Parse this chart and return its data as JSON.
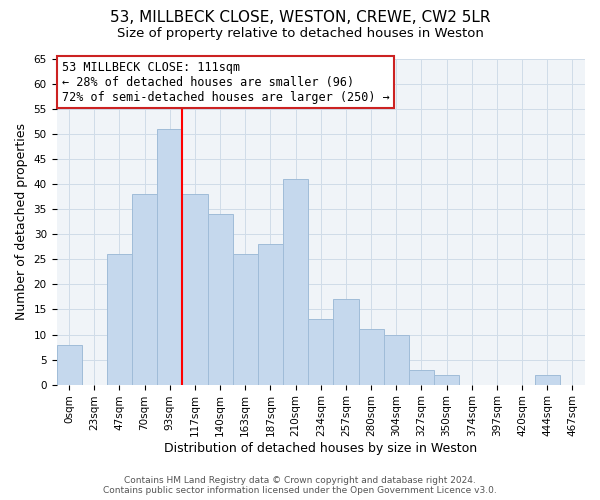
{
  "title": "53, MILLBECK CLOSE, WESTON, CREWE, CW2 5LR",
  "subtitle": "Size of property relative to detached houses in Weston",
  "xlabel": "Distribution of detached houses by size in Weston",
  "ylabel": "Number of detached properties",
  "bar_labels": [
    "0sqm",
    "23sqm",
    "47sqm",
    "70sqm",
    "93sqm",
    "117sqm",
    "140sqm",
    "163sqm",
    "187sqm",
    "210sqm",
    "234sqm",
    "257sqm",
    "280sqm",
    "304sqm",
    "327sqm",
    "350sqm",
    "374sqm",
    "397sqm",
    "420sqm",
    "444sqm",
    "467sqm"
  ],
  "bar_heights": [
    8,
    0,
    26,
    38,
    51,
    38,
    34,
    26,
    28,
    41,
    13,
    17,
    11,
    10,
    3,
    2,
    0,
    0,
    0,
    2,
    0
  ],
  "bar_color": "#c5d8ed",
  "bar_edge_color": "#a0bcd8",
  "vline_x": 4.5,
  "vline_color": "red",
  "ylim": [
    0,
    65
  ],
  "yticks": [
    0,
    5,
    10,
    15,
    20,
    25,
    30,
    35,
    40,
    45,
    50,
    55,
    60,
    65
  ],
  "annotation_title": "53 MILLBECK CLOSE: 111sqm",
  "annotation_line1": "← 28% of detached houses are smaller (96)",
  "annotation_line2": "72% of semi-detached houses are larger (250) →",
  "footer1": "Contains HM Land Registry data © Crown copyright and database right 2024.",
  "footer2": "Contains public sector information licensed under the Open Government Licence v3.0.",
  "title_fontsize": 11,
  "subtitle_fontsize": 9.5,
  "axis_label_fontsize": 9,
  "tick_fontsize": 7.5,
  "annotation_fontsize": 8.5,
  "footer_fontsize": 6.5,
  "grid_color": "#d0dce8",
  "background_color": "#f0f4f8"
}
